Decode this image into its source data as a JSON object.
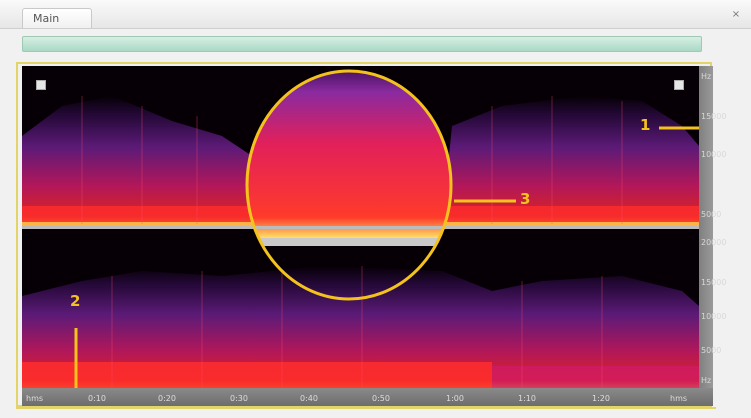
{
  "window": {
    "tab_label": "Main",
    "close_glyph": "×"
  },
  "frequency_axis": {
    "top": [
      "Hz",
      "15000",
      "10000",
      "5000"
    ],
    "bottom": [
      "20000",
      "15000",
      "10000",
      "5000",
      "Hz"
    ]
  },
  "time_axis": [
    "hms",
    "0:10",
    "0:20",
    "0:30",
    "0:40",
    "0:50",
    "1:00",
    "1:10",
    "1:20",
    "hms"
  ],
  "callouts": {
    "one": "1",
    "two": "2",
    "three": "3"
  },
  "colors": {
    "highlight": "#f4c21d",
    "border": "#e3d46a",
    "background": "#060006"
  },
  "icons": [
    "zoom-square-icon",
    "zoom-square-icon"
  ]
}
